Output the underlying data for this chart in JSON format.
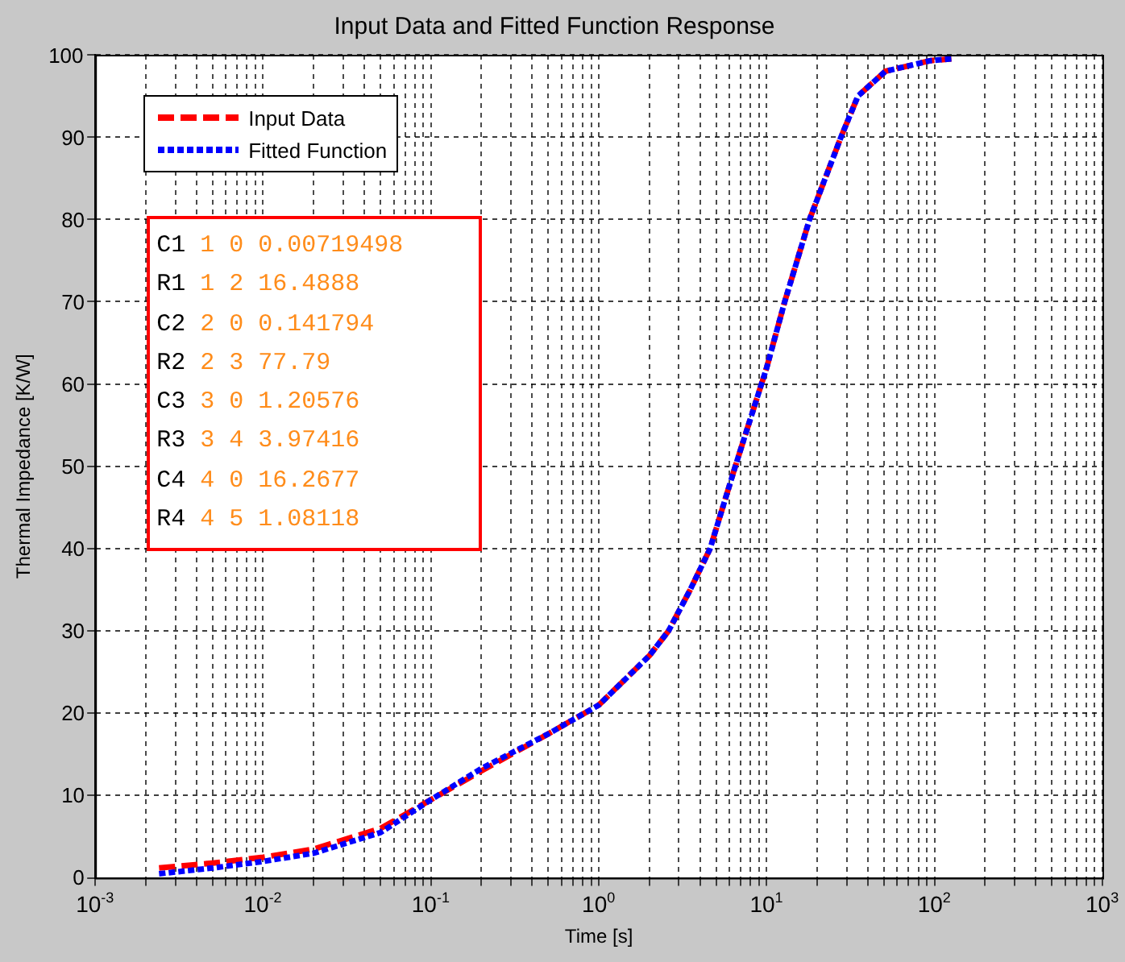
{
  "chart_data": {
    "type": "line",
    "title": "Input Data and Fitted Function Response",
    "xlabel": "Time [s]",
    "ylabel": "Thermal Impedance [K/W]",
    "log": "x",
    "grid": true,
    "legend": "top left",
    "marker": "none",
    "xlim": [
      0.001,
      1000
    ],
    "ylim": [
      0,
      100
    ],
    "xticks": [
      {
        "value": 0.001,
        "label": "10$^{-3}$"
      },
      {
        "value": 0.002,
        "label": null
      },
      {
        "value": 0.003,
        "label": null
      },
      {
        "value": 0.004,
        "label": null
      },
      {
        "value": 0.005,
        "label": null
      },
      {
        "value": 0.006,
        "label": null
      },
      {
        "value": 0.007,
        "label": null
      },
      {
        "value": 0.008,
        "label": null
      },
      {
        "value": 0.009,
        "label": null
      },
      {
        "value": 0.01,
        "label": "10$^{-2}$"
      },
      {
        "value": 0.02,
        "label": null
      },
      {
        "value": 0.03,
        "label": null
      },
      {
        "value": 0.04,
        "label": null
      },
      {
        "value": 0.05,
        "label": null
      },
      {
        "value": 0.06,
        "label": null
      },
      {
        "value": 0.07,
        "label": null
      },
      {
        "value": 0.08,
        "label": null
      },
      {
        "value": 0.09,
        "label": null
      },
      {
        "value": 0.1,
        "label": "10$^{-1}$"
      },
      {
        "value": 0.2,
        "label": null
      },
      {
        "value": 0.3,
        "label": null
      },
      {
        "value": 0.4,
        "label": null
      },
      {
        "value": 0.5,
        "label": null
      },
      {
        "value": 0.6,
        "label": null
      },
      {
        "value": 0.7,
        "label": null
      },
      {
        "value": 0.8,
        "label": null
      },
      {
        "value": 0.9,
        "label": null
      },
      {
        "value": 1,
        "label": "10$^{0}$"
      },
      {
        "value": 2,
        "label": null
      },
      {
        "value": 3,
        "label": null
      },
      {
        "value": 4,
        "label": null
      },
      {
        "value": 5,
        "label": null
      },
      {
        "value": 6,
        "label": null
      },
      {
        "value": 7,
        "label": null
      },
      {
        "value": 8,
        "label": null
      },
      {
        "value": 9,
        "label": null
      },
      {
        "value": 10,
        "label": "10$^{1}$"
      },
      {
        "value": 20,
        "label": null
      },
      {
        "value": 30,
        "label": null
      },
      {
        "value": 40,
        "label": null
      },
      {
        "value": 50,
        "label": null
      },
      {
        "value": 60,
        "label": null
      },
      {
        "value": 70,
        "label": null
      },
      {
        "value": 80,
        "label": null
      },
      {
        "value": 90,
        "label": null
      },
      {
        "value": 100,
        "label": "10$^{2}$"
      },
      {
        "value": 200,
        "label": null
      },
      {
        "value": 300,
        "label": null
      },
      {
        "value": 400,
        "label": null
      },
      {
        "value": 500,
        "label": null
      },
      {
        "value": 600,
        "label": null
      },
      {
        "value": 700,
        "label": null
      },
      {
        "value": 800,
        "label": null
      },
      {
        "value": 900,
        "label": null
      },
      {
        "value": 1000,
        "label": "10$^{3}$"
      }
    ],
    "yticks": [
      0,
      10,
      20,
      30,
      40,
      50,
      60,
      70,
      80,
      90,
      100
    ],
    "series": [
      {
        "name": "Input Data",
        "color": "#ff0000",
        "line_style": "dashed",
        "x": [
          0.0024,
          0.005,
          0.01,
          0.02,
          0.05,
          0.1,
          0.2,
          0.5,
          1,
          2,
          2.6,
          3.5,
          4.6,
          6.5,
          10,
          12.8,
          18,
          27.7,
          35,
          51,
          95,
          126
        ],
        "values": [
          1.2,
          1.8,
          2.5,
          3.5,
          6,
          9.5,
          13,
          17.5,
          21,
          27,
          30,
          35,
          40,
          50,
          62,
          70,
          80,
          90,
          95,
          98,
          99.3,
          99.5
        ]
      },
      {
        "name": "Fitted Function",
        "color": "#0000ff",
        "line_style": "dotted",
        "x": [
          0.0024,
          0.005,
          0.01,
          0.02,
          0.05,
          0.1,
          0.2,
          0.5,
          1,
          2,
          2.6,
          3.5,
          4.6,
          6.5,
          10,
          12.8,
          18,
          27.7,
          35,
          51,
          95,
          126
        ],
        "values": [
          0.5,
          1.2,
          2,
          3,
          5.5,
          9.5,
          13.3,
          17.5,
          21,
          27,
          30,
          35,
          40,
          50,
          62,
          70,
          80,
          90,
          95,
          98,
          99.3,
          99.5
        ]
      }
    ],
    "annotations": [
      "C1 1 0 0.00719498",
      "R1 1 2 16.4888",
      "C2 2 0 0.141794",
      "R2 2 3 77.79",
      "C3 3 0 1.20576",
      "R3 3 4 3.97416",
      "C4 4 0 16.2677",
      "R4 4 5 1.08118"
    ]
  }
}
